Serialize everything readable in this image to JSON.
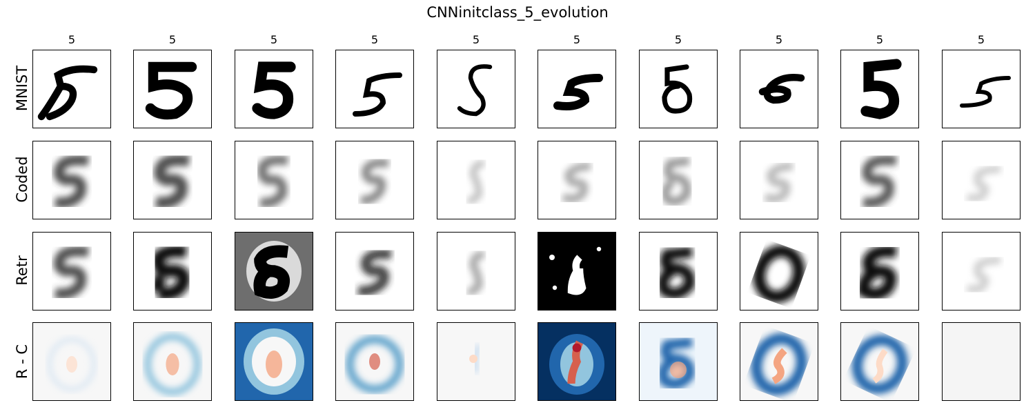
{
  "figure": {
    "title": "CNNinitclass_5_evolution",
    "column_labels": [
      "5",
      "5",
      "5",
      "5",
      "5",
      "5",
      "5",
      "5",
      "5",
      "5"
    ],
    "row_labels": [
      "MNIST",
      "Coded",
      "Retr",
      "R - C"
    ],
    "rows": [
      {
        "name": "MNIST",
        "colormap": "gray_r",
        "panels": [
          "mnist digit 5",
          "mnist digit 5",
          "mnist digit 5",
          "mnist digit 5",
          "mnist digit 5",
          "mnist digit 5",
          "mnist digit 5",
          "mnist digit 5",
          "mnist digit 5",
          "mnist digit 5"
        ]
      },
      {
        "name": "Coded",
        "colormap": "gray_r",
        "panels": [
          "coded blur",
          "coded blur",
          "coded blur",
          "coded blur",
          "coded blur",
          "coded blur",
          "coded blur",
          "coded blur",
          "coded blur",
          "coded blur"
        ]
      },
      {
        "name": "Retr",
        "colormap": "gray_r",
        "panels": [
          "retrieved",
          "retrieved",
          "retrieved gray background",
          "retrieved",
          "retrieved",
          "retrieved black background",
          "retrieved",
          "retrieved",
          "retrieved",
          "retrieved"
        ]
      },
      {
        "name": "R - C",
        "colormap": "RdBu_r",
        "panels": [
          "faint",
          "light blue",
          "strong blue",
          "blue",
          "faint",
          "dark blue",
          "blue",
          "blue",
          "blue",
          "empty"
        ]
      }
    ],
    "colors": {
      "diff_positive": "#d6604d",
      "diff_negative": "#2166ac",
      "diff_neutral": "#f7f7f7",
      "ink": "#000000"
    }
  }
}
